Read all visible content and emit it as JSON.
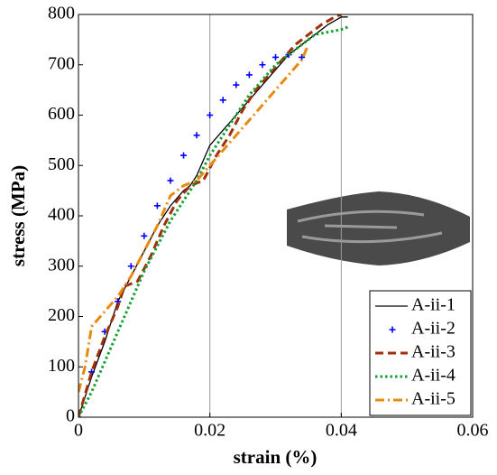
{
  "chart_data": {
    "type": "line",
    "xlabel": "strain (%)",
    "ylabel": "stress (MPa)",
    "xlim": [
      0,
      0.06
    ],
    "ylim": [
      0,
      800
    ],
    "xticks": [
      0,
      0.02,
      0.04,
      0.06
    ],
    "yticks": [
      0,
      100,
      200,
      300,
      400,
      500,
      600,
      700,
      800
    ],
    "grid": true,
    "legend": "lower right",
    "series": [
      {
        "name": "A-ii-1",
        "color": "#000000",
        "style": "solid",
        "x": [
          0,
          0.002,
          0.004,
          0.006,
          0.008,
          0.01,
          0.012,
          0.014,
          0.016,
          0.017,
          0.018,
          0.019,
          0.02,
          0.022,
          0.024,
          0.026,
          0.028,
          0.03,
          0.032,
          0.034,
          0.036,
          0.038,
          0.04,
          0.041
        ],
        "values": [
          0,
          80,
          150,
          230,
          280,
          330,
          380,
          420,
          450,
          460,
          480,
          510,
          540,
          570,
          600,
          630,
          660,
          690,
          720,
          740,
          760,
          780,
          795,
          795
        ]
      },
      {
        "name": "A-ii-2",
        "color": "#0000ff",
        "style": "markers",
        "x": [
          0,
          0.002,
          0.004,
          0.006,
          0.008,
          0.01,
          0.012,
          0.014,
          0.016,
          0.018,
          0.02,
          0.022,
          0.024,
          0.026,
          0.028,
          0.03,
          0.032,
          0.034
        ],
        "values": [
          0,
          90,
          170,
          230,
          300,
          360,
          420,
          470,
          520,
          560,
          600,
          630,
          660,
          680,
          700,
          715,
          720,
          715
        ]
      },
      {
        "name": "A-ii-3",
        "color": "#a0300a",
        "style": "dashed",
        "x": [
          0,
          0.002,
          0.004,
          0.006,
          0.007,
          0.009,
          0.011,
          0.013,
          0.015,
          0.017,
          0.019,
          0.021,
          0.023,
          0.025,
          0.027,
          0.029,
          0.031,
          0.033,
          0.035,
          0.037,
          0.039,
          0.04
        ],
        "values": [
          0,
          90,
          160,
          220,
          260,
          270,
          320,
          380,
          430,
          460,
          470,
          520,
          560,
          610,
          650,
          680,
          710,
          740,
          760,
          780,
          795,
          800
        ]
      },
      {
        "name": "A-ii-4",
        "color": "#10a030",
        "style": "dotted",
        "x": [
          0,
          0.002,
          0.004,
          0.006,
          0.008,
          0.01,
          0.012,
          0.014,
          0.016,
          0.018,
          0.02,
          0.022,
          0.024,
          0.026,
          0.028,
          0.03,
          0.032,
          0.034,
          0.036,
          0.038,
          0.04,
          0.041
        ],
        "values": [
          0,
          50,
          110,
          170,
          230,
          290,
          340,
          390,
          430,
          470,
          520,
          560,
          600,
          640,
          670,
          700,
          720,
          740,
          760,
          765,
          770,
          775
        ]
      },
      {
        "name": "A-ii-5",
        "color": "#e88a10",
        "style": "dashdot",
        "x": [
          0,
          0.001,
          0.002,
          0.004,
          0.006,
          0.008,
          0.01,
          0.012,
          0.014,
          0.016,
          0.018,
          0.02,
          0.022,
          0.024,
          0.026,
          0.028,
          0.03,
          0.032,
          0.034,
          0.035
        ],
        "values": [
          50,
          100,
          180,
          210,
          240,
          280,
          330,
          380,
          440,
          460,
          470,
          500,
          530,
          560,
          590,
          620,
          650,
          680,
          710,
          740
        ]
      }
    ]
  }
}
